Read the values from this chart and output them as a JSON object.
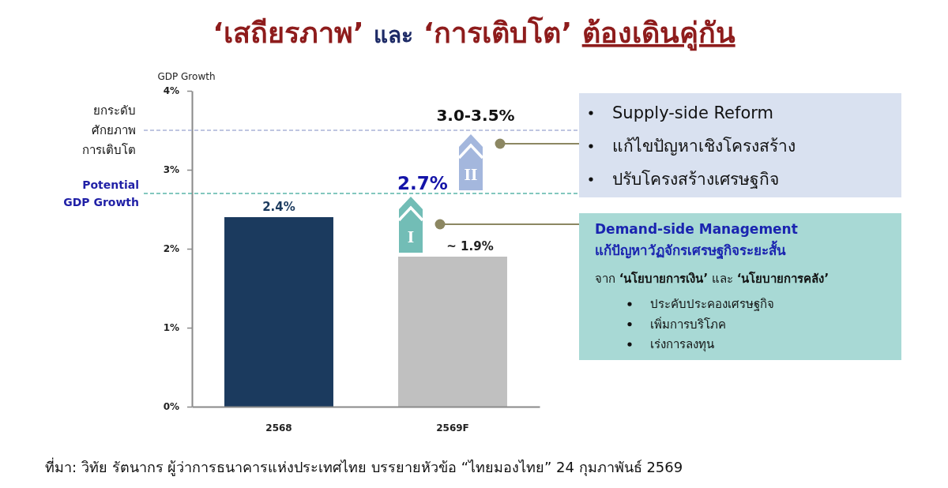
{
  "chart_data": {
    "type": "bar",
    "title": "‘เสถียรภาพ’ และ ‘การเติบโต’ ต้องเดินคู่กัน",
    "ylabel": "GDP Growth",
    "categories": [
      "2568",
      "2569F"
    ],
    "values": [
      2.4,
      1.9
    ],
    "colors": [
      "#1b3a5e",
      "#c0c0c0"
    ],
    "value_labels": [
      "2.4%",
      "~ 1.9%"
    ],
    "ylim": [
      0,
      4
    ],
    "yticks": [
      {
        "value": 0,
        "label": "0%"
      },
      {
        "value": 1,
        "label": "1%"
      },
      {
        "value": 2,
        "label": "2%"
      },
      {
        "value": 3,
        "label": "3%"
      },
      {
        "value": 4,
        "label": "4%"
      }
    ],
    "ref_lines": [
      {
        "axis": "y",
        "value": 3.5,
        "label": "ยกระดับ\nศักยภาพ\nการเติบโต",
        "color": "#aab4d8",
        "line_style": "dashed"
      },
      {
        "axis": "y",
        "value": 2.7,
        "label": "Potential\nGDP Growth",
        "color": "#5bb5a9",
        "line_style": "dashed"
      }
    ],
    "annotations": [
      {
        "text": "2.7%",
        "x": "2569F",
        "y": 2.7
      },
      {
        "text": "3.0-3.5%",
        "x": "2569F",
        "y": 3.5
      },
      "I",
      "II",
      "Supply-side Reform",
      "แก้ไขปัญหาเชิงโครงสร้าง",
      "ปรับโครงสร้างเศรษฐกิจ",
      "Demand-side Management",
      "แก้ปัญหาวัฏจักรเศรษฐกิจระยะสั้น",
      "จาก ‘นโยบายการเงิน’ และ ‘นโยบายการคลัง’",
      "ประคับประคองเศรษฐกิจ",
      "เพิ่มการบริโภค",
      "เร่งการลงทุน",
      "ที่มา: วิทัย รัตนากร ผู้ว่าการธนาคารแห่งประเทศไทย บรรยายหัวข้อ “ไทยมองไทย” 24 กุมภาพันธ์ 2569"
    ]
  }
}
